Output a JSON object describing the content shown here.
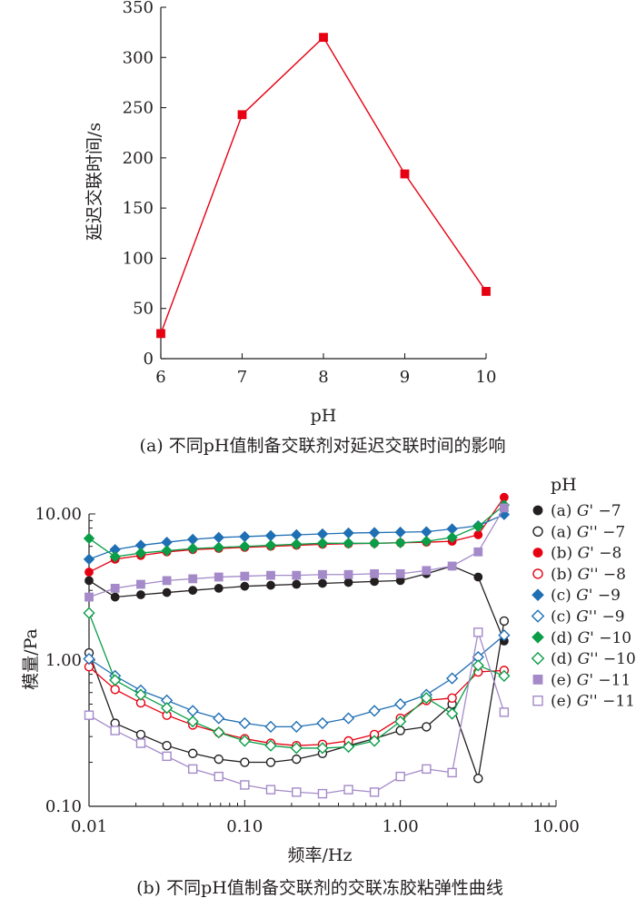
{
  "chart_data": [
    {
      "type": "line",
      "title": "",
      "caption": "(a) 不同pH值制备交联剂对延迟交联时间的影响",
      "xlabel": "pH",
      "ylabel": "延迟交联时间/s",
      "xlim": [
        6,
        10
      ],
      "ylim": [
        0,
        350
      ],
      "x_ticks": [
        6,
        7,
        8,
        9,
        10
      ],
      "y_ticks": [
        0,
        50,
        100,
        150,
        200,
        250,
        300,
        350
      ],
      "grid": false,
      "series": [
        {
          "color": "#e60012",
          "marker": "filled-square",
          "x": [
            6,
            7,
            8,
            9,
            10
          ],
          "y": [
            25,
            243,
            320,
            184,
            67
          ]
        }
      ]
    },
    {
      "type": "line",
      "title": "",
      "caption": "(b) 不同pH值制备交联剂的交联冻胶粘弹性曲线",
      "xlabel": "频率/Hz",
      "ylabel": "模量/Pa",
      "xscale": "log",
      "yscale": "log",
      "xlim": [
        0.01,
        10
      ],
      "ylim": [
        0.1,
        10
      ],
      "x_ticks": [
        "0.01",
        "0.10",
        "1.00",
        "10.00"
      ],
      "y_ticks": [
        "0.10",
        "1.00",
        "10.00"
      ],
      "grid": false,
      "legend_title": "pH",
      "legend_position": "right",
      "x": [
        0.01,
        0.0147,
        0.0215,
        0.0316,
        0.0464,
        0.0681,
        0.1,
        0.147,
        0.215,
        0.316,
        0.464,
        0.681,
        1.0,
        1.47,
        2.15,
        3.16,
        4.64
      ],
      "series": [
        {
          "legend": "(a) G' −7",
          "label_prefix": "(a) ",
          "label_italic": "G'",
          "label_suffix": " −7",
          "color": "#231f20",
          "marker": "circle",
          "filled": true,
          "y": [
            3.5,
            2.7,
            2.8,
            2.9,
            3.0,
            3.1,
            3.2,
            3.25,
            3.3,
            3.35,
            3.4,
            3.45,
            3.5,
            3.9,
            4.4,
            3.7,
            1.35
          ]
        },
        {
          "legend": "(a) G'' −7",
          "label_prefix": "(a) ",
          "label_italic": "G''",
          "label_suffix": " −7",
          "color": "#231f20",
          "marker": "circle",
          "filled": false,
          "y": [
            1.12,
            0.37,
            0.31,
            0.26,
            0.23,
            0.21,
            0.2,
            0.2,
            0.21,
            0.23,
            0.26,
            0.29,
            0.33,
            0.35,
            0.5,
            0.155,
            1.85
          ]
        },
        {
          "legend": "(b) G' −8",
          "label_prefix": "(b) ",
          "label_italic": "G'",
          "label_suffix": " −8",
          "color": "#e60012",
          "marker": "circle",
          "filled": true,
          "y": [
            4.0,
            4.9,
            5.2,
            5.5,
            5.7,
            5.8,
            5.9,
            6.0,
            6.1,
            6.2,
            6.25,
            6.3,
            6.35,
            6.4,
            6.5,
            7.2,
            13.0
          ]
        },
        {
          "legend": "(b) G'' −8",
          "label_prefix": "(b) ",
          "label_italic": "G''",
          "label_suffix": " −8",
          "color": "#e60012",
          "marker": "circle",
          "filled": false,
          "y": [
            0.9,
            0.63,
            0.51,
            0.42,
            0.36,
            0.32,
            0.29,
            0.27,
            0.26,
            0.265,
            0.28,
            0.31,
            0.4,
            0.53,
            0.55,
            0.83,
            0.85
          ]
        },
        {
          "legend": "(c) G' −9",
          "label_prefix": "(c) ",
          "label_italic": "G'",
          "label_suffix": " −9",
          "color": "#1f6fb4",
          "marker": "diamond",
          "filled": true,
          "y": [
            4.9,
            5.7,
            6.1,
            6.4,
            6.7,
            6.9,
            7.0,
            7.1,
            7.2,
            7.3,
            7.4,
            7.45,
            7.5,
            7.55,
            7.9,
            8.3,
            9.9
          ]
        },
        {
          "legend": "(c) G'' −9",
          "label_prefix": "(c) ",
          "label_italic": "G''",
          "label_suffix": " −9",
          "color": "#1f6fb4",
          "marker": "diamond",
          "filled": false,
          "y": [
            1.02,
            0.78,
            0.62,
            0.53,
            0.45,
            0.4,
            0.37,
            0.35,
            0.35,
            0.37,
            0.4,
            0.45,
            0.5,
            0.58,
            0.75,
            1.05,
            1.48
          ]
        },
        {
          "legend": "(d) G' −10",
          "label_prefix": "(d) ",
          "label_italic": "G'",
          "label_suffix": " −10",
          "color": "#0a9e48",
          "marker": "diamond",
          "filled": true,
          "y": [
            6.8,
            5.1,
            5.4,
            5.6,
            5.8,
            5.9,
            6.0,
            6.1,
            6.2,
            6.3,
            6.3,
            6.3,
            6.35,
            6.5,
            6.9,
            8.2,
            11.5
          ]
        },
        {
          "legend": "(d) G'' −10",
          "label_prefix": "(d) ",
          "label_italic": "G''",
          "label_suffix": " −10",
          "color": "#0a9e48",
          "marker": "diamond",
          "filled": false,
          "y": [
            2.1,
            0.73,
            0.58,
            0.47,
            0.38,
            0.32,
            0.28,
            0.26,
            0.25,
            0.25,
            0.255,
            0.28,
            0.38,
            0.55,
            0.43,
            0.92,
            0.78
          ]
        },
        {
          "legend": "(e) G' −11",
          "label_prefix": "(e) ",
          "label_italic": "G'",
          "label_suffix": " −11",
          "color": "#a48ac8",
          "marker": "square",
          "filled": true,
          "y": [
            2.7,
            3.1,
            3.3,
            3.5,
            3.6,
            3.7,
            3.75,
            3.8,
            3.8,
            3.85,
            3.85,
            3.9,
            3.9,
            4.1,
            4.4,
            5.5,
            11.0
          ]
        },
        {
          "legend": "(e) G'' −11",
          "label_prefix": "(e) ",
          "label_italic": "G''",
          "label_suffix": " −11",
          "color": "#a48ac8",
          "marker": "square",
          "filled": false,
          "y": [
            0.42,
            0.33,
            0.27,
            0.22,
            0.18,
            0.16,
            0.14,
            0.13,
            0.125,
            0.122,
            0.13,
            0.125,
            0.16,
            0.18,
            0.17,
            1.55,
            0.44
          ]
        }
      ]
    }
  ]
}
